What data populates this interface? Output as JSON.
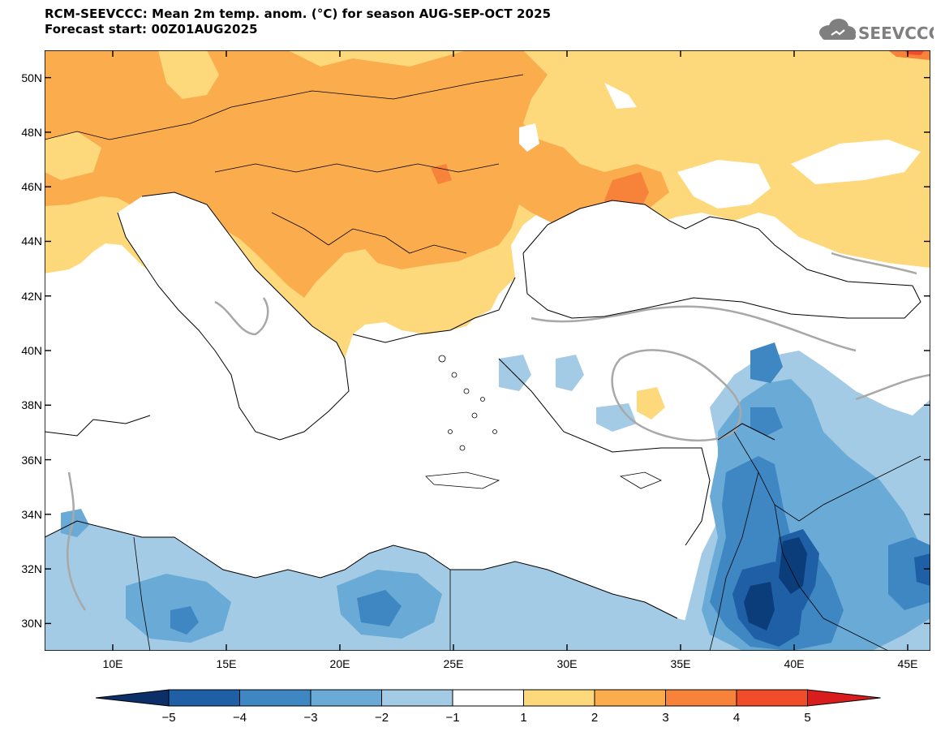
{
  "header": {
    "title_line1": "RCM-SEEVCCC: Mean 2m temp. anom. (°C) for season AUG-SEP-OCT 2025",
    "title_line2": "Forecast start: 00Z01AUG2025"
  },
  "logo": {
    "text": "SEEVCCC",
    "icon": "cloud-logo-icon"
  },
  "map": {
    "lon_range": [
      7,
      46
    ],
    "lat_range": [
      29,
      51
    ],
    "lon_ticks": [
      "10E",
      "15E",
      "20E",
      "25E",
      "30E",
      "35E",
      "40E",
      "45E"
    ],
    "lon_tick_values": [
      10,
      15,
      20,
      25,
      30,
      35,
      40,
      45
    ],
    "lat_ticks": [
      "50N",
      "48N",
      "46N",
      "44N",
      "42N",
      "40N",
      "38N",
      "36N",
      "34N",
      "32N",
      "30N"
    ],
    "lat_tick_values": [
      50,
      48,
      46,
      44,
      42,
      40,
      38,
      36,
      34,
      32,
      30
    ],
    "contour_label": "0"
  },
  "colorbar": {
    "labels": [
      "−5",
      "−4",
      "−3",
      "−2",
      "−1",
      "1",
      "2",
      "3",
      "4",
      "5"
    ],
    "colors": [
      "#0b3d7a",
      "#1f5fa5",
      "#3f87c2",
      "#6aaad6",
      "#a4cbe5",
      "#ffffff",
      "#fdd97c",
      "#fbad4e",
      "#f7823a",
      "#f14d2b",
      "#d91c1c"
    ],
    "low_color": "#0b2f66",
    "high_color": "#d91c1c"
  },
  "palette": {
    "warm1": "#fdd97c",
    "warm2": "#fbad4e",
    "warm3": "#f7823a",
    "warm4": "#f14d2b",
    "cool1": "#a4cbe5",
    "cool2": "#6aaad6",
    "cool3": "#3f87c2",
    "cool4": "#1f5fa5",
    "cool5": "#0b3d7a",
    "contour": "#a8a8a8"
  }
}
